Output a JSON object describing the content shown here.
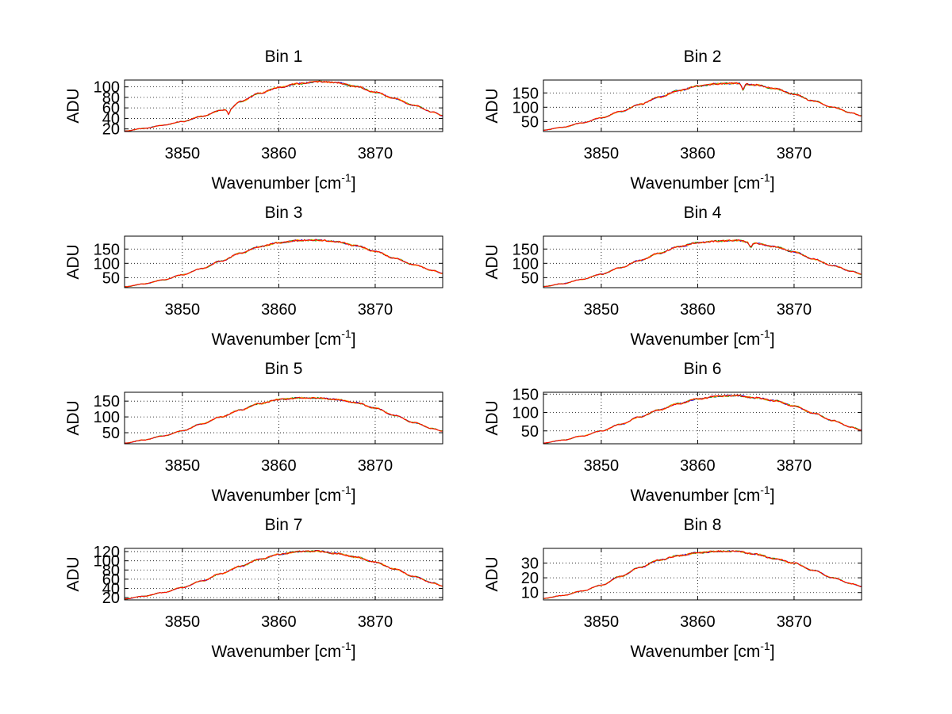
{
  "figure": {
    "background": "#ffffff",
    "series_colors": [
      "#0000ff",
      "#00aa00",
      "#ffaa00",
      "#ff0000"
    ]
  },
  "chart_data": [
    {
      "type": "line",
      "title": "Bin 1",
      "xlabel": "Wavenumber [cm",
      "xlabel_sup": "-1",
      "xlabel_end": "]",
      "ylabel": "ADU",
      "xlim": [
        3844,
        3877
      ],
      "ylim": [
        15,
        113
      ],
      "xticks": [
        3850,
        3860,
        3870
      ],
      "yticks": [
        20,
        40,
        60,
        80,
        100
      ],
      "ytick_labels": [
        "20",
        "40",
        "60",
        "80",
        "100"
      ],
      "grid": true,
      "x": [
        3844,
        3846,
        3848,
        3850,
        3852,
        3854,
        3855,
        3856,
        3858,
        3860,
        3862,
        3864,
        3866,
        3868,
        3870,
        3872,
        3874,
        3876,
        3877
      ],
      "values": [
        16,
        21,
        27,
        34,
        44,
        55,
        60,
        72,
        88,
        99,
        106,
        110,
        108,
        101,
        90,
        78,
        65,
        52,
        45
      ],
      "dips": [
        [
          3854.8,
          -12
        ]
      ]
    },
    {
      "type": "line",
      "title": "Bin 2",
      "xlabel": "Wavenumber [cm",
      "xlabel_sup": "-1",
      "xlabel_end": "]",
      "ylabel": "ADU",
      "xlim": [
        3844,
        3877
      ],
      "ylim": [
        15,
        195
      ],
      "xticks": [
        3850,
        3860,
        3870
      ],
      "yticks": [
        50,
        100,
        150
      ],
      "ytick_labels": [
        "50",
        "100",
        "150"
      ],
      "grid": true,
      "x": [
        3844,
        3846,
        3848,
        3850,
        3852,
        3854,
        3856,
        3858,
        3860,
        3862,
        3864,
        3866,
        3868,
        3870,
        3872,
        3874,
        3876,
        3877
      ],
      "values": [
        20,
        30,
        45,
        63,
        85,
        110,
        135,
        158,
        174,
        182,
        184,
        178,
        165,
        145,
        122,
        100,
        80,
        70
      ],
      "dips": [
        [
          3864.7,
          -22
        ]
      ]
    },
    {
      "type": "line",
      "title": "Bin 3",
      "xlabel": "Wavenumber [cm",
      "xlabel_sup": "-1",
      "xlabel_end": "]",
      "ylabel": "ADU",
      "xlim": [
        3844,
        3877
      ],
      "ylim": [
        15,
        195
      ],
      "xticks": [
        3850,
        3860,
        3870
      ],
      "yticks": [
        50,
        100,
        150
      ],
      "ytick_labels": [
        "50",
        "100",
        "150"
      ],
      "grid": true,
      "x": [
        3844,
        3846,
        3848,
        3850,
        3852,
        3854,
        3856,
        3858,
        3860,
        3862,
        3864,
        3866,
        3868,
        3870,
        3872,
        3874,
        3876,
        3877
      ],
      "values": [
        18,
        28,
        42,
        60,
        82,
        108,
        135,
        158,
        172,
        180,
        181,
        176,
        162,
        142,
        118,
        95,
        75,
        65
      ],
      "dips": []
    },
    {
      "type": "line",
      "title": "Bin 4",
      "xlabel": "Wavenumber [cm",
      "xlabel_sup": "-1",
      "xlabel_end": "]",
      "ylabel": "ADU",
      "xlim": [
        3844,
        3877
      ],
      "ylim": [
        15,
        195
      ],
      "xticks": [
        3850,
        3860,
        3870
      ],
      "yticks": [
        50,
        100,
        150
      ],
      "ytick_labels": [
        "50",
        "100",
        "150"
      ],
      "grid": true,
      "x": [
        3844,
        3846,
        3848,
        3850,
        3852,
        3854,
        3856,
        3858,
        3860,
        3862,
        3864,
        3866,
        3868,
        3870,
        3872,
        3874,
        3876,
        3877
      ],
      "values": [
        19,
        29,
        44,
        62,
        85,
        110,
        135,
        158,
        172,
        178,
        180,
        170,
        158,
        140,
        115,
        92,
        72,
        62
      ],
      "dips": [
        [
          3865.5,
          -15
        ]
      ]
    },
    {
      "type": "line",
      "title": "Bin 5",
      "xlabel": "Wavenumber [cm",
      "xlabel_sup": "-1",
      "xlabel_end": "]",
      "ylabel": "ADU",
      "xlim": [
        3844,
        3877
      ],
      "ylim": [
        15,
        178
      ],
      "xticks": [
        3850,
        3860,
        3870
      ],
      "yticks": [
        50,
        100,
        150
      ],
      "ytick_labels": [
        "50",
        "100",
        "150"
      ],
      "grid": true,
      "x": [
        3844,
        3846,
        3848,
        3850,
        3852,
        3854,
        3856,
        3858,
        3860,
        3862,
        3864,
        3866,
        3868,
        3870,
        3872,
        3874,
        3876,
        3877
      ],
      "values": [
        17,
        27,
        40,
        56,
        78,
        100,
        122,
        142,
        155,
        160,
        160,
        155,
        145,
        128,
        105,
        82,
        63,
        55
      ],
      "dips": []
    },
    {
      "type": "line",
      "title": "Bin 6",
      "xlabel": "Wavenumber [cm",
      "xlabel_sup": "-1",
      "xlabel_end": "]",
      "ylabel": "ADU",
      "xlim": [
        3844,
        3877
      ],
      "ylim": [
        15,
        155
      ],
      "xticks": [
        3850,
        3860,
        3870
      ],
      "yticks": [
        50,
        100,
        150
      ],
      "ytick_labels": [
        "50",
        "100",
        "150"
      ],
      "grid": true,
      "x": [
        3844,
        3846,
        3848,
        3850,
        3852,
        3854,
        3856,
        3858,
        3860,
        3862,
        3864,
        3866,
        3868,
        3870,
        3872,
        3874,
        3876,
        3877
      ],
      "values": [
        17,
        25,
        36,
        50,
        68,
        88,
        107,
        124,
        137,
        144,
        146,
        140,
        132,
        118,
        98,
        78,
        60,
        52
      ],
      "dips": []
    },
    {
      "type": "line",
      "title": "Bin 7",
      "xlabel": "Wavenumber [cm",
      "xlabel_sup": "-1",
      "xlabel_end": "]",
      "ylabel": "ADU",
      "xlim": [
        3844,
        3877
      ],
      "ylim": [
        15,
        127
      ],
      "xticks": [
        3850,
        3860,
        3870
      ],
      "yticks": [
        20,
        40,
        60,
        80,
        100,
        120
      ],
      "ytick_labels": [
        "20",
        "40",
        "60",
        "80",
        "100",
        "120"
      ],
      "grid": true,
      "x": [
        3844,
        3846,
        3848,
        3850,
        3852,
        3854,
        3856,
        3858,
        3860,
        3862,
        3864,
        3866,
        3868,
        3870,
        3872,
        3874,
        3876,
        3877
      ],
      "values": [
        17,
        23,
        31,
        42,
        56,
        72,
        88,
        103,
        114,
        120,
        121,
        116,
        108,
        97,
        82,
        66,
        52,
        45
      ],
      "dips": []
    },
    {
      "type": "line",
      "title": "Bin 8",
      "xlabel": "Wavenumber [cm",
      "xlabel_sup": "-1",
      "xlabel_end": "]",
      "ylabel": "ADU",
      "xlim": [
        3844,
        3877
      ],
      "ylim": [
        5,
        40
      ],
      "xticks": [
        3850,
        3860,
        3870
      ],
      "yticks": [
        10,
        20,
        30
      ],
      "ytick_labels": [
        "10",
        "20",
        "30"
      ],
      "grid": true,
      "x": [
        3844,
        3846,
        3848,
        3850,
        3852,
        3854,
        3856,
        3858,
        3860,
        3862,
        3864,
        3866,
        3868,
        3870,
        3872,
        3874,
        3876,
        3877
      ],
      "values": [
        6,
        8,
        11,
        15,
        21,
        27,
        32,
        35,
        37,
        38,
        38,
        36,
        33,
        30,
        25,
        20,
        16,
        14
      ],
      "dips": []
    }
  ]
}
